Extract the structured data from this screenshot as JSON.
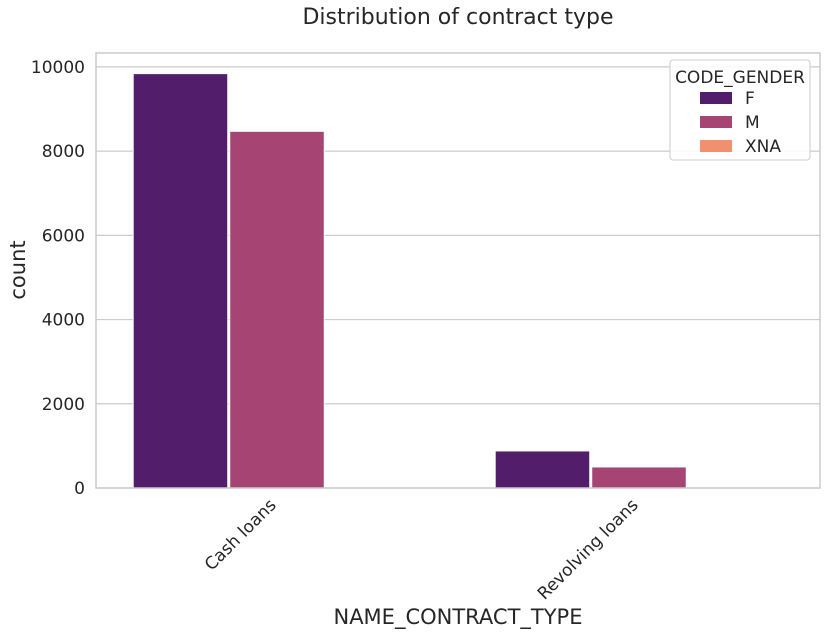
{
  "chart_data": {
    "type": "bar",
    "title": "Distribution of contract type",
    "xlabel": "NAME_CONTRACT_TYPE",
    "ylabel": "count",
    "categories": [
      "Cash loans",
      "Revolving loans"
    ],
    "series": [
      {
        "name": "F",
        "values": [
          9840,
          880
        ],
        "color": "#521e6b"
      },
      {
        "name": "M",
        "values": [
          8470,
          500
        ],
        "color": "#a64574"
      },
      {
        "name": "XNA",
        "values": [
          0,
          0
        ],
        "color": "#f0906e"
      }
    ],
    "yticks": [
      0,
      2000,
      4000,
      6000,
      8000,
      10000
    ],
    "ylim": [
      0,
      10330
    ],
    "grid": true,
    "legend": {
      "title": "CODE_GENDER",
      "placement": "top-right"
    }
  }
}
